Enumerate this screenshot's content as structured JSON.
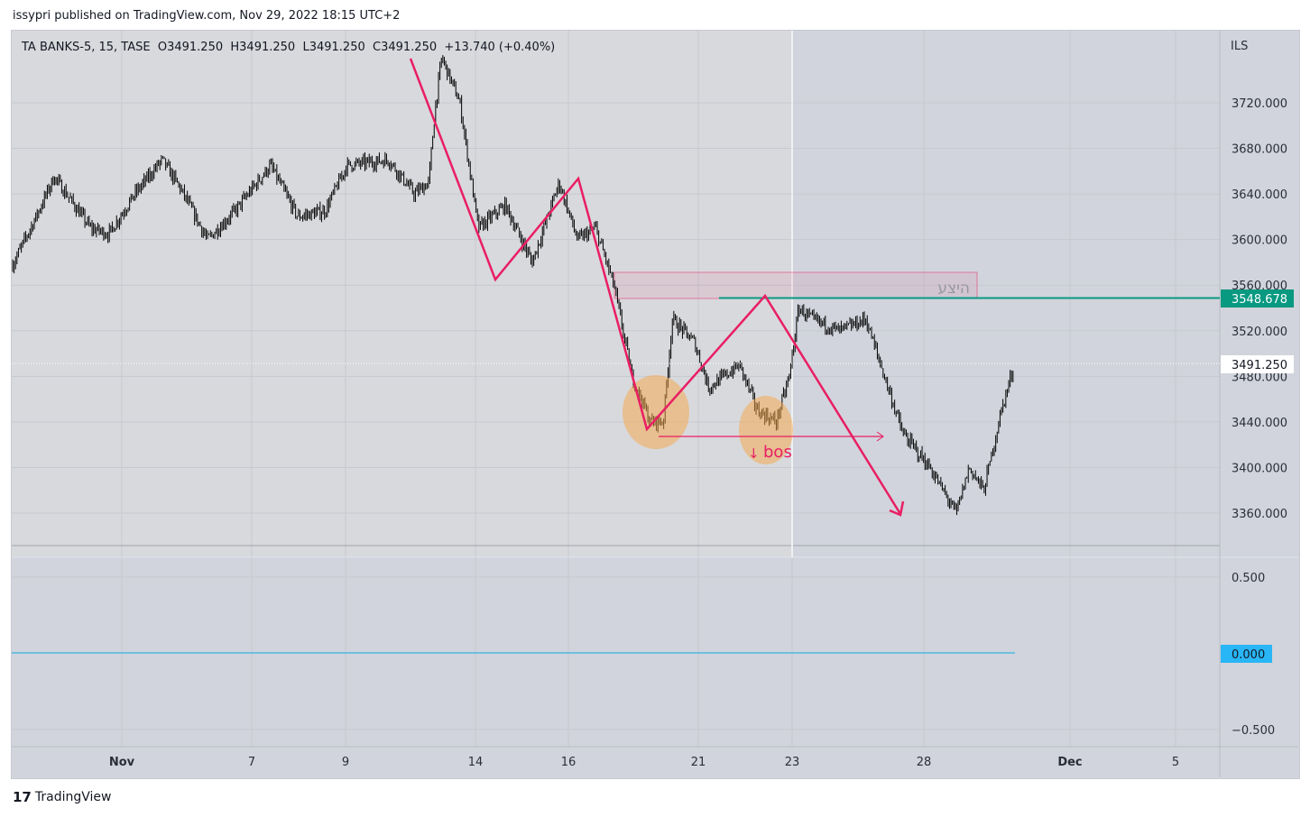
{
  "header": {
    "published": "issypri published on TradingView.com, Nov 29, 2022 18:15 UTC+2"
  },
  "legend": {
    "symbol": "TA BANKS-5, 15, TASE",
    "open": "O3491.250",
    "high": "H3491.250",
    "low": "L3491.250",
    "close": "C3491.250",
    "change": "+13.740 (+0.40%)"
  },
  "price_axis": {
    "currency": "ILS",
    "ticks": [
      "3720.000",
      "3680.000",
      "3640.000",
      "3600.000",
      "3560.000",
      "3520.000",
      "3480.000",
      "3440.000",
      "3400.000",
      "3360.000"
    ],
    "line_label": "3548.678",
    "last_label": "3491.250",
    "line_color": "#089981"
  },
  "indicator_axis": {
    "ticks": [
      "0.500",
      "0.000",
      "−0.500"
    ],
    "value_label": "0.000",
    "line_color": "#4fb8e0"
  },
  "time_axis": {
    "ticks": [
      "Nov",
      "7",
      "9",
      "14",
      "16",
      "21",
      "23",
      "28",
      "Dec",
      "5"
    ]
  },
  "annotations": {
    "bos": "bos",
    "bos_arrow": "↓",
    "zone": "היצע",
    "drawing_color": "#e91e63"
  },
  "footer": {
    "brand": "TradingView"
  },
  "chart_data": {
    "type": "candlestick",
    "title": "TA BANKS-5, 15, TASE",
    "ylim": [
      3340,
      3770
    ],
    "x_note": "x in tick-index units (Nov=0 ... 5=9)",
    "close_path": [
      [
        -0.84,
        3578
      ],
      [
        -0.66,
        3620
      ],
      [
        -0.52,
        3655
      ],
      [
        -0.24,
        3610
      ],
      [
        -0.1,
        3605
      ],
      [
        0.1,
        3640
      ],
      [
        0.31,
        3670
      ],
      [
        0.45,
        3645
      ],
      [
        0.66,
        3600
      ],
      [
        0.87,
        3625
      ],
      [
        1.2,
        3665
      ],
      [
        1.49,
        3620
      ],
      [
        1.78,
        3625
      ],
      [
        2.01,
        3665
      ],
      [
        2.33,
        3670
      ],
      [
        2.53,
        3640
      ],
      [
        2.64,
        3650
      ],
      [
        2.69,
        3715
      ],
      [
        2.74,
        3760
      ],
      [
        2.88,
        3720
      ],
      [
        3.03,
        3610
      ],
      [
        3.32,
        3630
      ],
      [
        3.61,
        3580
      ],
      [
        3.9,
        3650
      ],
      [
        4.07,
        3600
      ],
      [
        4.21,
        3610
      ],
      [
        4.35,
        3560
      ],
      [
        4.49,
        3480
      ],
      [
        4.63,
        3440
      ],
      [
        4.73,
        3440
      ],
      [
        4.8,
        3530
      ],
      [
        4.97,
        3510
      ],
      [
        5.11,
        3470
      ],
      [
        5.44,
        3490
      ],
      [
        5.63,
        3450
      ],
      [
        5.83,
        3440
      ],
      [
        5.97,
        3480
      ],
      [
        6.05,
        3540
      ],
      [
        6.15,
        3530
      ],
      [
        6.36,
        3520
      ],
      [
        6.56,
        3530
      ],
      [
        6.7,
        3480
      ],
      [
        6.84,
        3430
      ],
      [
        7.04,
        3400
      ],
      [
        7.22,
        3360
      ],
      [
        7.31,
        3400
      ],
      [
        7.41,
        3380
      ],
      [
        7.53,
        3450
      ],
      [
        7.62,
        3491
      ]
    ],
    "horizontal_line": 3548.678,
    "last_price": 3491.25,
    "indicator": {
      "name": "oscillator",
      "value": 0.0,
      "ylim": [
        -0.6,
        0.6
      ]
    }
  }
}
